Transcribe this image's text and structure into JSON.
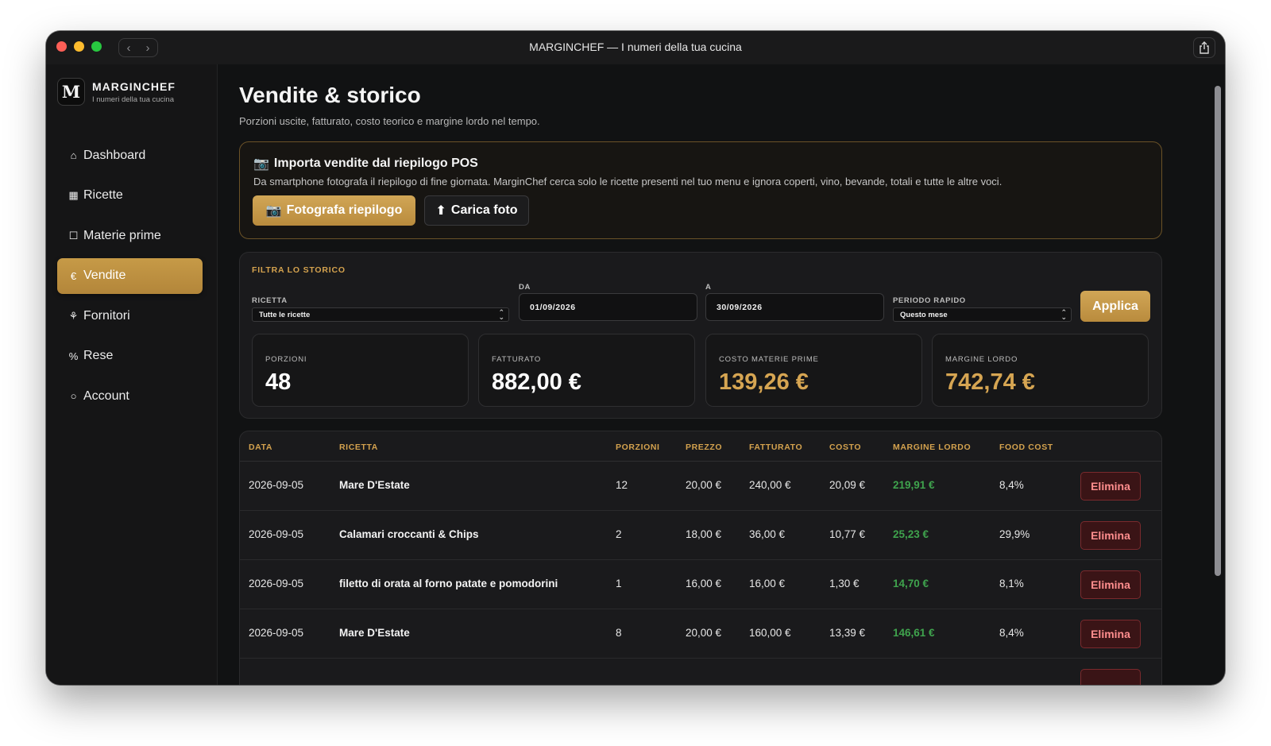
{
  "window": {
    "title": "MARGINCHEF — I numeri della tua cucina"
  },
  "brand": {
    "logo_letter": "M",
    "name": "MARGINCHEF",
    "tagline": "I numeri della tua cucina"
  },
  "sidebar": {
    "items": [
      {
        "icon": "⌂",
        "label": "Dashboard",
        "active": false
      },
      {
        "icon": "▦",
        "label": "Ricette",
        "active": false
      },
      {
        "icon": "☐",
        "label": "Materie prime",
        "active": false
      },
      {
        "icon": "€",
        "label": "Vendite",
        "active": true
      },
      {
        "icon": "⚘",
        "label": "Fornitori",
        "active": false
      },
      {
        "icon": "%",
        "label": "Rese",
        "active": false
      },
      {
        "icon": "○",
        "label": "Account",
        "active": false
      }
    ]
  },
  "page": {
    "title": "Vendite & storico",
    "subtitle": "Porzioni uscite, fatturato, costo teorico e margine lordo nel tempo."
  },
  "import": {
    "icon": "📷",
    "title": "Importa vendite dal riepilogo POS",
    "description": "Da smartphone fotografa il riepilogo di fine giornata. MarginChef cerca solo le ricette presenti nel tuo menu e ignora coperti, vino, bevande, totali e tutte le altre voci.",
    "photo_button": "Fotografa riepilogo",
    "upload_icon": "⬆",
    "upload_button": "Carica foto"
  },
  "filter": {
    "title": "FILTRA LO STORICO",
    "recipe_label": "RICETTA",
    "recipe_value": "Tutte le ricette",
    "from_label": "DA",
    "from_value": "01/09/2026",
    "to_label": "A",
    "to_value": "30/09/2026",
    "period_label": "PERIODO RAPIDO",
    "period_value": "Questo mese",
    "apply_button": "Applica"
  },
  "stats": [
    {
      "label": "PORZIONI",
      "value": "48",
      "accent": false
    },
    {
      "label": "FATTURATO",
      "value": "882,00 €",
      "accent": false
    },
    {
      "label": "COSTO MATERIE PRIME",
      "value": "139,26 €",
      "accent": true
    },
    {
      "label": "MARGINE LORDO",
      "value": "742,74 €",
      "accent": true
    }
  ],
  "table": {
    "headers": [
      "DATA",
      "RICETTA",
      "PORZIONI",
      "PREZZO",
      "FATTURATO",
      "COSTO",
      "MARGINE LORDO",
      "FOOD COST"
    ],
    "delete_label": "Elimina",
    "rows": [
      {
        "date": "2026-09-05",
        "recipe": "Mare D'Estate",
        "portions": "12",
        "price": "20,00 €",
        "revenue": "240,00 €",
        "cost": "20,09 €",
        "margin": "219,91 €",
        "food_cost": "8,4%"
      },
      {
        "date": "2026-09-05",
        "recipe": "Calamari croccanti & Chips",
        "portions": "2",
        "price": "18,00 €",
        "revenue": "36,00 €",
        "cost": "10,77 €",
        "margin": "25,23 €",
        "food_cost": "29,9%"
      },
      {
        "date": "2026-09-05",
        "recipe": "filetto di orata al forno patate e pomodorini",
        "portions": "1",
        "price": "16,00 €",
        "revenue": "16,00 €",
        "cost": "1,30 €",
        "margin": "14,70 €",
        "food_cost": "8,1%"
      },
      {
        "date": "2026-09-05",
        "recipe": "Mare D'Estate",
        "portions": "8",
        "price": "20,00 €",
        "revenue": "160,00 €",
        "cost": "13,39 €",
        "margin": "146,61 €",
        "food_cost": "8,4%"
      }
    ]
  }
}
